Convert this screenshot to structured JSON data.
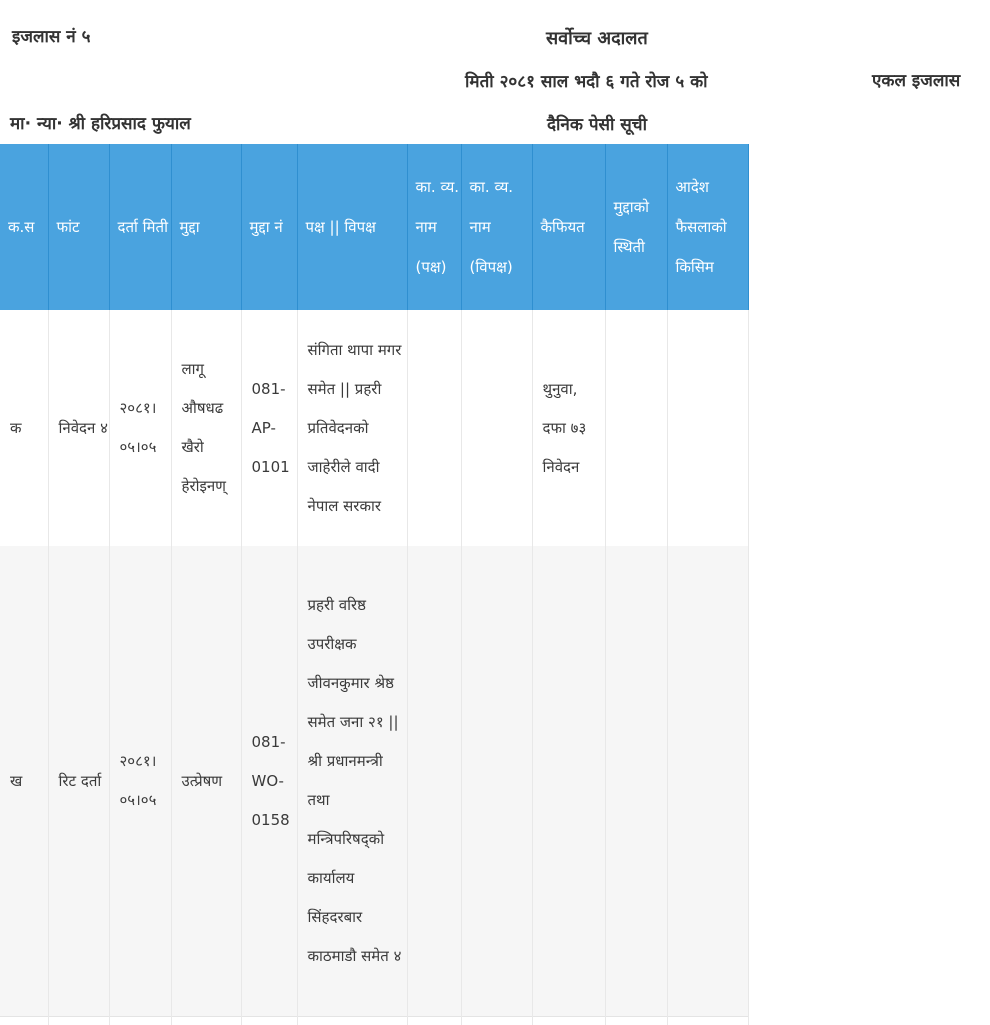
{
  "header": {
    "ijlas_no": "इजलास नं ५",
    "court": "सर्वोच्च अदालत",
    "date_line": "मिती २०८१ साल भदौ ६ गते रोज ५ को",
    "bench_type": "एकल इजलास",
    "judge": "मा· न्या· श्री हरिप्रसाद फुयाल",
    "list_title": "दैनिक पेसी सूची"
  },
  "table": {
    "columns": {
      "sn": "क.स",
      "phant": "फांट",
      "darta_miti": "दर्ता मिती",
      "mudda": "मुद्दा",
      "mudda_no": "मुद्दा नं",
      "paksha": "पक्ष || विपक्ष",
      "kavya_paksha": "का. व्य. नाम (पक्ष)",
      "kavya_vipaksha": "का. व्य. नाम (विपक्ष)",
      "kaifiyat": "कैफियत",
      "sthiti": "मुद्दाको स्थिती",
      "aadesh": "आदेश फैसलाको किसिम"
    },
    "rows": [
      {
        "sn": "क",
        "phant": "निवेदन ४",
        "darta_miti": "२०८१।०५।०५",
        "mudda": "लागू औषधढ खैरो हेरोइनण्",
        "mudda_no": "081-AP-0101",
        "paksha": "संगिता थापा मगर समेत || प्रहरी प्रतिवेदनको जाहेरीले वादी नेपाल सरकार",
        "kavya_paksha": "",
        "kavya_vipaksha": "",
        "kaifiyat": "थुनुवा, दफा ७३ निवेदन",
        "sthiti": "",
        "aadesh": ""
      },
      {
        "sn": "ख",
        "phant": "रिट दर्ता",
        "darta_miti": "२०८१।०५।०५",
        "mudda": "उत्प्रेषण",
        "mudda_no": "081-WO-0158",
        "paksha": "प्रहरी वरिष्ठ उपरीक्षक जीवनकुमार श्रेष्ठ समेत जना २१ || श्री प्रधानमन्त्री तथा मन्त्रिपरिषद्को कार्यालय सिंहदरबार काठमाडौ समेत ४",
        "kavya_paksha": "",
        "kavya_vipaksha": "",
        "kaifiyat": "",
        "sthiti": "",
        "aadesh": ""
      }
    ]
  },
  "colors": {
    "header_bg": "#4aa3df",
    "header_text": "#ffffff",
    "alt_row": "#f6f6f6"
  }
}
